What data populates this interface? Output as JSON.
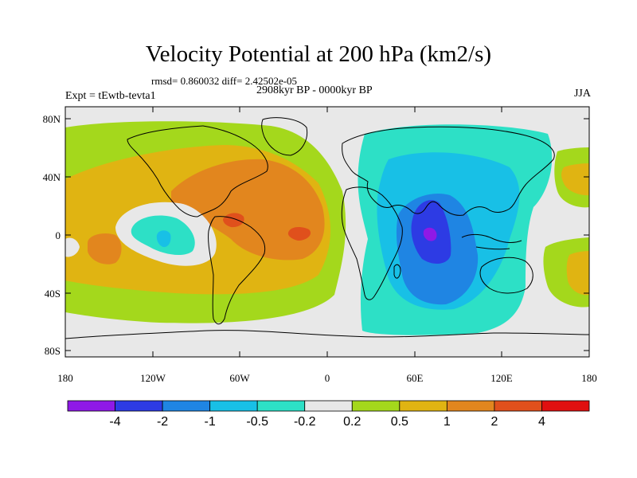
{
  "header": {
    "title": "Velocity Potential at 200 hPa (km2/s)",
    "stats": "rmsd= 0.860032  diff= 2.42502e-05",
    "experiment": "Expt = tEwtb-tevta1",
    "period": "2908kyr BP - 0000kyr BP",
    "season": "JJA"
  },
  "map": {
    "lon_ticks": [
      "180",
      "120W",
      "60W",
      "0",
      "60E",
      "120E",
      "180"
    ],
    "lat_ticks": [
      "80N",
      "40N",
      "0",
      "40S",
      "80S"
    ],
    "land_color": "#e8e8e8"
  },
  "colorbar": {
    "colors": [
      "#8f19e6",
      "#2d3be4",
      "#1f85e3",
      "#18c0e6",
      "#2de0c6",
      "#e8e8e8",
      "#a4d81c",
      "#e0b412",
      "#e2861e",
      "#e0501c",
      "#e01010"
    ],
    "labels": [
      "-4",
      "-2",
      "-1",
      "-0.5",
      "-0.2",
      "0.2",
      "0.5",
      "1",
      "2",
      "4"
    ]
  }
}
